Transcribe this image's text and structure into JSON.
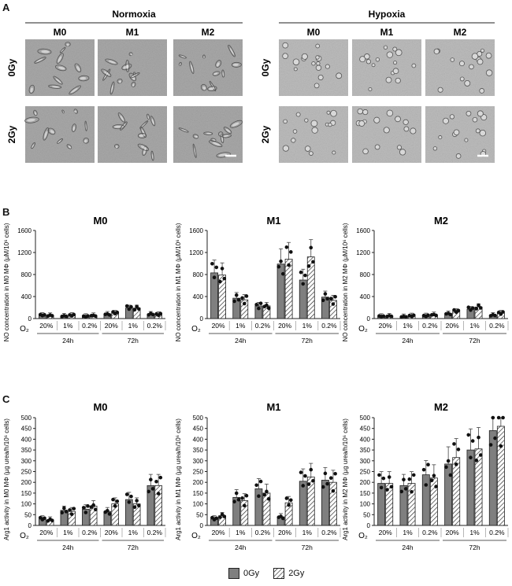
{
  "figure": {
    "panel_a": "A",
    "panel_b": "B",
    "panel_c": "C"
  },
  "micrographs": {
    "groups": [
      {
        "title": "Normoxia",
        "columns": [
          "M0",
          "M1",
          "M2"
        ]
      },
      {
        "title": "Hypoxia",
        "columns": [
          "M0",
          "M1",
          "M2"
        ]
      }
    ],
    "rows": [
      "0Gy",
      "2Gy"
    ]
  },
  "legend": {
    "items": [
      {
        "label": "0Gy",
        "color": "#7f7f7f",
        "pattern": "solid"
      },
      {
        "label": "2Gy",
        "color": "#ffffff",
        "pattern": "hatch"
      }
    ]
  },
  "chart_data": [
    {
      "type": "bar",
      "panel": "B",
      "title": "M0",
      "ylabel": "NO concentration in M0 MΦ (µM/10⁶ cells)",
      "ylim": [
        0,
        1600
      ],
      "yticks": [
        0,
        400,
        800,
        1200,
        1600
      ],
      "categories": [
        "20%",
        "1%",
        "0.2%",
        "20%",
        "1%",
        "0.2%"
      ],
      "groups": [
        "24h",
        "72h"
      ],
      "o2_label": "O₂",
      "series": [
        {
          "name": "0Gy",
          "values": [
            60,
            45,
            40,
            80,
            190,
            80
          ]
        },
        {
          "name": "2Gy",
          "values": [
            55,
            60,
            55,
            100,
            190,
            75
          ]
        }
      ]
    },
    {
      "type": "bar",
      "panel": "B",
      "title": "M1",
      "ylabel": "NO concentration in M1 MΦ (µM/10⁶ cells)",
      "ylim": [
        0,
        1600
      ],
      "yticks": [
        0,
        400,
        800,
        1200,
        1600
      ],
      "categories": [
        "20%",
        "1%",
        "0.2%",
        "20%",
        "1%",
        "0.2%"
      ],
      "groups": [
        "24h",
        "72h"
      ],
      "o2_label": "O₂",
      "series": [
        {
          "name": "0Gy",
          "values": [
            830,
            370,
            230,
            990,
            700,
            390
          ]
        },
        {
          "name": "2Gy",
          "values": [
            790,
            340,
            230,
            1080,
            1120,
            330
          ]
        }
      ]
    },
    {
      "type": "bar",
      "panel": "B",
      "title": "M2",
      "ylabel": "NO concentration in M2 MΦ (µM/10⁶ cells)",
      "ylim": [
        0,
        1600
      ],
      "yticks": [
        0,
        400,
        800,
        1200,
        1600
      ],
      "categories": [
        "20%",
        "1%",
        "0.2%",
        "20%",
        "1%",
        "0.2%"
      ],
      "groups": [
        "24h",
        "72h"
      ],
      "o2_label": "O₂",
      "series": [
        {
          "name": "0Gy",
          "values": [
            40,
            35,
            50,
            90,
            170,
            60
          ]
        },
        {
          "name": "2Gy",
          "values": [
            45,
            50,
            70,
            130,
            210,
            100
          ]
        }
      ]
    },
    {
      "type": "bar",
      "panel": "C",
      "title": "M0",
      "ylabel": "Arg1 activity in M0 MΦ (µg urea/h/10⁶ cells)",
      "ylim": [
        0,
        500
      ],
      "yticks": [
        0,
        50,
        100,
        150,
        200,
        250,
        300,
        350,
        400,
        450,
        500
      ],
      "categories": [
        "20%",
        "1%",
        "0.2%",
        "20%",
        "1%",
        "0.2%"
      ],
      "groups": [
        "24h",
        "72h"
      ],
      "o2_label": "O₂",
      "series": [
        {
          "name": "0Gy",
          "values": [
            30,
            70,
            75,
            65,
            120,
            185
          ]
        },
        {
          "name": "2Gy",
          "values": [
            25,
            65,
            90,
            100,
            100,
            185
          ]
        }
      ]
    },
    {
      "type": "bar",
      "panel": "C",
      "title": "M1",
      "ylabel": "Arg1 activity in M1 MΦ (µg urea/h/10⁶ cells)",
      "ylim": [
        0,
        500
      ],
      "yticks": [
        0,
        50,
        100,
        150,
        200,
        250,
        300,
        350,
        400,
        450,
        500
      ],
      "categories": [
        "20%",
        "1%",
        "0.2%",
        "20%",
        "1%",
        "0.2%"
      ],
      "groups": [
        "24h",
        "72h"
      ],
      "o2_label": "O₂",
      "series": [
        {
          "name": "0Gy",
          "values": [
            30,
            130,
            170,
            40,
            205,
            210
          ]
        },
        {
          "name": "2Gy",
          "values": [
            45,
            115,
            150,
            105,
            225,
            200
          ]
        }
      ]
    },
    {
      "type": "bar",
      "panel": "C",
      "title": "M2",
      "ylabel": "Arg1 activity in M2 MΦ (µg urea/h/10⁶ cells)",
      "ylim": [
        0,
        500
      ],
      "yticks": [
        0,
        50,
        100,
        150,
        200,
        250,
        300,
        350,
        400,
        450,
        500
      ],
      "categories": [
        "20%",
        "1%",
        "0.2%",
        "20%",
        "1%",
        "0.2%"
      ],
      "groups": [
        "24h",
        "72h"
      ],
      "o2_label": "O₂",
      "series": [
        {
          "name": "0Gy",
          "values": [
            195,
            185,
            235,
            285,
            350,
            440
          ]
        },
        {
          "name": "2Gy",
          "values": [
            195,
            195,
            220,
            315,
            355,
            460
          ]
        }
      ]
    }
  ]
}
